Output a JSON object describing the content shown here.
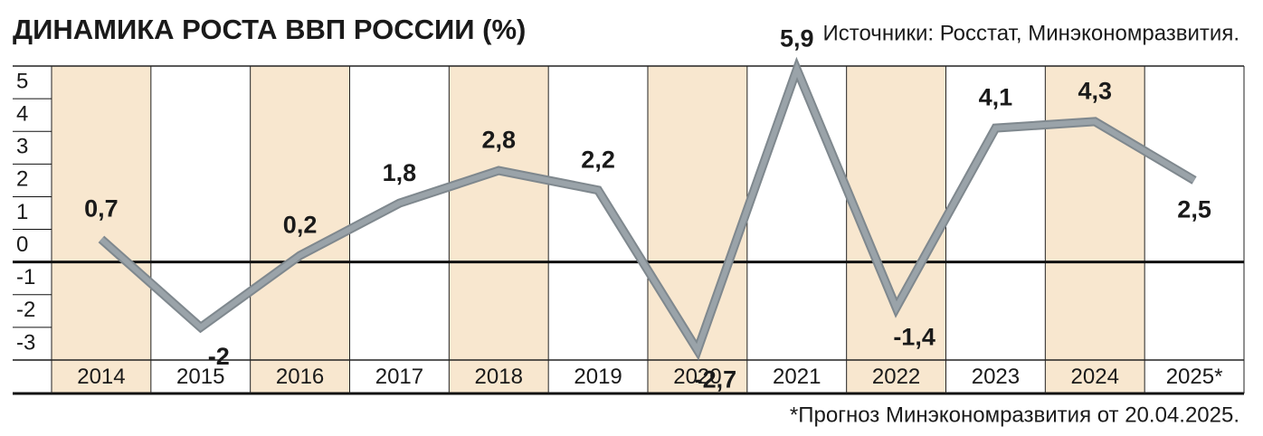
{
  "chart_data": {
    "type": "line",
    "title": "ДИНАМИКА РОСТА ВВП РОССИИ (%)",
    "source": "Источники: Росстат, Минэкономразвития.",
    "footnote": "*Прогноз Минэкономразвития от 20.04.2025.",
    "categories": [
      "2014",
      "2015",
      "2016",
      "2017",
      "2018",
      "2019",
      "2020",
      "2021",
      "2022",
      "2023",
      "2024",
      "2025*"
    ],
    "values": [
      0.7,
      -2,
      0.2,
      1.8,
      2.8,
      2.2,
      -2.7,
      5.9,
      -1.4,
      4.1,
      4.3,
      2.5
    ],
    "value_labels": [
      "0,7",
      "-2",
      "0,2",
      "1,8",
      "2,8",
      "2,2",
      "-2,7",
      "5,9",
      "-1,4",
      "4,1",
      "4,3",
      "2,5"
    ],
    "color": "#9aa3a9",
    "ylim": [
      -3,
      6
    ],
    "yticks": [
      -3,
      -2,
      -1,
      0,
      1,
      2,
      3,
      4,
      5
    ],
    "band_color": "#f8e7cf"
  }
}
